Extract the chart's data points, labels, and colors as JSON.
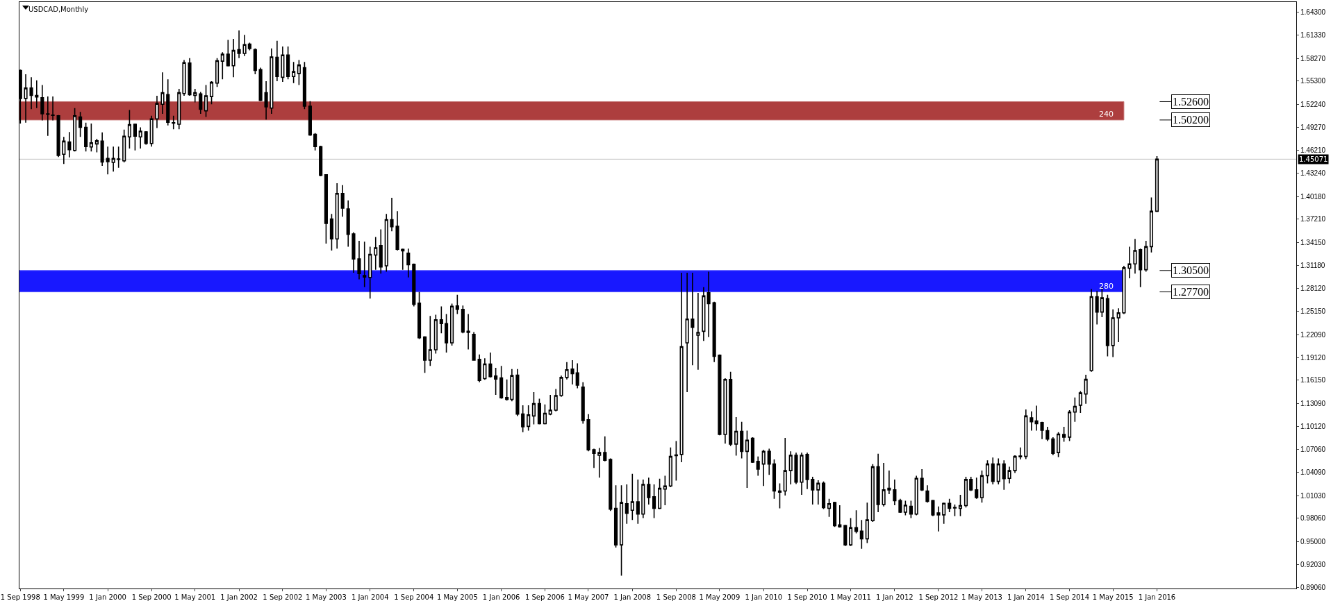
{
  "chart_data": {
    "type": "candlestick",
    "title": "USDCAD,Monthly",
    "x": [
      "1998-09",
      "1998-10",
      "1998-11",
      "1998-12",
      "1999-01",
      "1999-02",
      "1999-03",
      "1999-04",
      "1999-05",
      "1999-06",
      "1999-07",
      "1999-08",
      "1999-09",
      "1999-10",
      "1999-11",
      "1999-12",
      "2000-01",
      "2000-02",
      "2000-03",
      "2000-04",
      "2000-05",
      "2000-06",
      "2000-07",
      "2000-08",
      "2000-09",
      "2000-10",
      "2000-11",
      "2000-12",
      "2001-01",
      "2001-02",
      "2001-03",
      "2001-04",
      "2001-05",
      "2001-06",
      "2001-07",
      "2001-08",
      "2001-09",
      "2001-10",
      "2001-11",
      "2001-12",
      "2002-01",
      "2002-02",
      "2002-03",
      "2002-04",
      "2002-05",
      "2002-06",
      "2002-07",
      "2002-08",
      "2002-09",
      "2002-10",
      "2002-11",
      "2002-12",
      "2003-01",
      "2003-02",
      "2003-03",
      "2003-04",
      "2003-05",
      "2003-06",
      "2003-07",
      "2003-08",
      "2003-09",
      "2003-10",
      "2003-11",
      "2003-12",
      "2004-01",
      "2004-02",
      "2004-03",
      "2004-04",
      "2004-05",
      "2004-06",
      "2004-07",
      "2004-08",
      "2004-09",
      "2004-10",
      "2004-11",
      "2004-12",
      "2005-01",
      "2005-02",
      "2005-03",
      "2005-04",
      "2005-05",
      "2005-06",
      "2005-07",
      "2005-08",
      "2005-09",
      "2005-10",
      "2005-11",
      "2005-12",
      "2006-01",
      "2006-02",
      "2006-03",
      "2006-04",
      "2006-05",
      "2006-06",
      "2006-07",
      "2006-08",
      "2006-09",
      "2006-10",
      "2006-11",
      "2006-12",
      "2007-01",
      "2007-02",
      "2007-03",
      "2007-04",
      "2007-05",
      "2007-06",
      "2007-07",
      "2007-08",
      "2007-09",
      "2007-10",
      "2007-11",
      "2007-12",
      "2008-01",
      "2008-02",
      "2008-03",
      "2008-04",
      "2008-05",
      "2008-06",
      "2008-07",
      "2008-08",
      "2008-09",
      "2008-10",
      "2008-11",
      "2008-12",
      "2009-01",
      "2009-02",
      "2009-03",
      "2009-04",
      "2009-05",
      "2009-06",
      "2009-07",
      "2009-08",
      "2009-09",
      "2009-10",
      "2009-11",
      "2009-12",
      "2010-01",
      "2010-02",
      "2010-03",
      "2010-04",
      "2010-05",
      "2010-06",
      "2010-07",
      "2010-08",
      "2010-09",
      "2010-10",
      "2010-11",
      "2010-12",
      "2011-01",
      "2011-02",
      "2011-03",
      "2011-04",
      "2011-05",
      "2011-06",
      "2011-07",
      "2011-08",
      "2011-09",
      "2011-10",
      "2011-11",
      "2011-12",
      "2012-01",
      "2012-02",
      "2012-03",
      "2012-04",
      "2012-05",
      "2012-06",
      "2012-07",
      "2012-08",
      "2012-09",
      "2012-10",
      "2012-11",
      "2012-12",
      "2013-01",
      "2013-02",
      "2013-03",
      "2013-04",
      "2013-05",
      "2013-06",
      "2013-07",
      "2013-08",
      "2013-09",
      "2013-10",
      "2013-11",
      "2013-12",
      "2014-01",
      "2014-02",
      "2014-03",
      "2014-04",
      "2014-05",
      "2014-06",
      "2014-07",
      "2014-08",
      "2014-09",
      "2014-10",
      "2014-11",
      "2014-12",
      "2015-01",
      "2015-02",
      "2015-03",
      "2015-04",
      "2015-05",
      "2015-06",
      "2015-07",
      "2015-08",
      "2015-09",
      "2015-10",
      "2015-11",
      "2015-12",
      "2016-01"
    ],
    "ohlc": [
      [
        1.5669,
        1.5679,
        1.4974,
        1.5302
      ],
      [
        1.5302,
        1.5619,
        1.4984,
        1.5438
      ],
      [
        1.5438,
        1.5579,
        1.5161,
        1.5342
      ],
      [
        1.5342,
        1.5538,
        1.5176,
        1.5322
      ],
      [
        1.5312,
        1.5478,
        1.5014,
        1.51
      ],
      [
        1.5095,
        1.5327,
        1.4813,
        1.51
      ],
      [
        1.5085,
        1.5327,
        1.5014,
        1.508
      ],
      [
        1.5075,
        1.5085,
        1.4536,
        1.4556
      ],
      [
        1.4571,
        1.4798,
        1.4445,
        1.4743
      ],
      [
        1.4732,
        1.4863,
        1.4531,
        1.4632
      ],
      [
        1.4622,
        1.5176,
        1.4607,
        1.5075
      ],
      [
        1.506,
        1.5125,
        1.4798,
        1.4924
      ],
      [
        1.4924,
        1.4984,
        1.4607,
        1.4672
      ],
      [
        1.4667,
        1.4974,
        1.4607,
        1.4722
      ],
      [
        1.4707,
        1.4773,
        1.4597,
        1.4748
      ],
      [
        1.4743,
        1.4858,
        1.442,
        1.447
      ],
      [
        1.4516,
        1.4672,
        1.4309,
        1.4475
      ],
      [
        1.4465,
        1.4672,
        1.4345,
        1.4516
      ],
      [
        1.4505,
        1.4672,
        1.4395,
        1.451
      ],
      [
        1.4485,
        1.4893,
        1.4465,
        1.4808
      ],
      [
        1.4798,
        1.5151,
        1.4647,
        1.4959
      ],
      [
        1.4964,
        1.4974,
        1.4622,
        1.4808
      ],
      [
        1.4798,
        1.4924,
        1.4647,
        1.4873
      ],
      [
        1.4863,
        1.4873,
        1.4697,
        1.4712
      ],
      [
        1.4712,
        1.5075,
        1.4672,
        1.5035
      ],
      [
        1.5035,
        1.5337,
        1.4914,
        1.5236
      ],
      [
        1.5226,
        1.5644,
        1.51,
        1.5377
      ],
      [
        1.5352,
        1.5553,
        1.4949,
        1.4989
      ],
      [
        1.4984,
        1.5075,
        1.4899,
        1.4979
      ],
      [
        1.4964,
        1.5428,
        1.4899,
        1.5377
      ],
      [
        1.5367,
        1.5805,
        1.5337,
        1.577
      ],
      [
        1.5765,
        1.583,
        1.5337,
        1.5352
      ],
      [
        1.5342,
        1.5428,
        1.5251,
        1.5377
      ],
      [
        1.5362,
        1.5387,
        1.51,
        1.5161
      ],
      [
        1.514,
        1.5478,
        1.506,
        1.5337
      ],
      [
        1.5327,
        1.5528,
        1.5226,
        1.5513
      ],
      [
        1.5503,
        1.583,
        1.5453,
        1.5795
      ],
      [
        1.579,
        1.5906,
        1.5553,
        1.5881
      ],
      [
        1.5881,
        1.6067,
        1.572,
        1.573
      ],
      [
        1.573,
        1.6082,
        1.5579,
        1.5931
      ],
      [
        1.5941,
        1.6193,
        1.583,
        1.5891
      ],
      [
        1.5891,
        1.6133,
        1.5856,
        1.6007
      ],
      [
        1.6012,
        1.6032,
        1.5931,
        1.5956
      ],
      [
        1.5941,
        1.5956,
        1.5619,
        1.5669
      ],
      [
        1.5679,
        1.5705,
        1.5266,
        1.5276
      ],
      [
        1.5377,
        1.5528,
        1.5025,
        1.5191
      ],
      [
        1.5176,
        1.5956,
        1.51,
        1.5846
      ],
      [
        1.5841,
        1.6057,
        1.5528,
        1.5589
      ],
      [
        1.5579,
        1.5981,
        1.5518,
        1.5871
      ],
      [
        1.5871,
        1.5981,
        1.5553,
        1.5589
      ],
      [
        1.5589,
        1.578,
        1.5503,
        1.5654
      ],
      [
        1.5629,
        1.5805,
        1.5478,
        1.574
      ],
      [
        1.5705,
        1.578,
        1.5161,
        1.5201
      ],
      [
        1.5201,
        1.5266,
        1.4813,
        1.4823
      ],
      [
        1.4833,
        1.4848,
        1.4622,
        1.4672
      ],
      [
        1.4672,
        1.4682,
        1.4284,
        1.4294
      ],
      [
        1.4304,
        1.4309,
        1.3403,
        1.3665
      ],
      [
        1.3725,
        1.3791,
        1.3312,
        1.3463
      ],
      [
        1.3463,
        1.4193,
        1.3337,
        1.4058
      ],
      [
        1.4058,
        1.4168,
        1.3755,
        1.3866
      ],
      [
        1.3856,
        1.3967,
        1.3362,
        1.3524
      ],
      [
        1.3529,
        1.3549,
        1.302,
        1.3201
      ],
      [
        1.3201,
        1.3438,
        1.2934,
        1.301
      ],
      [
        1.2985,
        1.3428,
        1.2833,
        1.2965
      ],
      [
        1.296,
        1.3362,
        1.2682,
        1.3262
      ],
      [
        1.3252,
        1.3488,
        1.306,
        1.3347
      ],
      [
        1.3377,
        1.3589,
        1.301,
        1.3095
      ],
      [
        1.3111,
        1.3791,
        1.3035,
        1.3715
      ],
      [
        1.3715,
        1.4002,
        1.3564,
        1.3624
      ],
      [
        1.3629,
        1.3826,
        1.3312,
        1.3327
      ],
      [
        1.3327,
        1.3337,
        1.306,
        1.3307
      ],
      [
        1.3277,
        1.3337,
        1.2959,
        1.3126
      ],
      [
        1.3131,
        1.3141,
        1.2581,
        1.2607
      ],
      [
        1.2622,
        1.2768,
        1.2154,
        1.2169
      ],
      [
        1.2179,
        1.2189,
        1.171,
        1.1877
      ],
      [
        1.1877,
        1.2456,
        1.1801,
        1.2013
      ],
      [
        1.2013,
        1.2471,
        1.1962,
        1.2405
      ],
      [
        1.2405,
        1.2581,
        1.2229,
        1.2355
      ],
      [
        1.2355,
        1.2481,
        1.1977,
        1.2103
      ],
      [
        1.2103,
        1.2617,
        1.2068,
        1.2582
      ],
      [
        1.2587,
        1.2733,
        1.2481,
        1.2541
      ],
      [
        1.2541,
        1.2592,
        1.2229,
        1.2244
      ],
      [
        1.2254,
        1.2481,
        1.2018,
        1.2239
      ],
      [
        1.2214,
        1.2244,
        1.1877,
        1.1877
      ],
      [
        1.1887,
        1.1952,
        1.1589,
        1.161
      ],
      [
        1.1635,
        1.1902,
        1.162,
        1.1826
      ],
      [
        1.1826,
        1.1977,
        1.165,
        1.166
      ],
      [
        1.167,
        1.1776,
        1.1423,
        1.163
      ],
      [
        1.1645,
        1.1801,
        1.1373,
        1.1383
      ],
      [
        1.1388,
        1.1625,
        1.1348,
        1.1363
      ],
      [
        1.1363,
        1.1761,
        1.1338,
        1.1675
      ],
      [
        1.168,
        1.1761,
        1.1146,
        1.1171
      ],
      [
        1.1171,
        1.1287,
        1.0935,
        1.1005
      ],
      [
        1.101,
        1.1287,
        1.0955,
        1.1161
      ],
      [
        1.1146,
        1.1458,
        1.1035,
        1.1307
      ],
      [
        1.1307,
        1.1373,
        1.1035,
        1.1045
      ],
      [
        1.1045,
        1.1297,
        1.1035,
        1.1181
      ],
      [
        1.1171,
        1.1423,
        1.1156,
        1.1222
      ],
      [
        1.1222,
        1.1499,
        1.1206,
        1.1413
      ],
      [
        1.1413,
        1.1675,
        1.1398,
        1.165
      ],
      [
        1.165,
        1.1851,
        1.1625,
        1.1751
      ],
      [
        1.1761,
        1.1876,
        1.1559,
        1.17
      ],
      [
        1.171,
        1.1836,
        1.1509,
        1.1549
      ],
      [
        1.1524,
        1.1589,
        1.1045,
        1.1086
      ],
      [
        1.1096,
        1.1171,
        1.0683,
        1.0703
      ],
      [
        1.0703,
        1.0718,
        1.0466,
        1.0657
      ],
      [
        1.0632,
        1.0728,
        1.034,
        1.0667
      ],
      [
        1.0667,
        1.0879,
        1.0552,
        1.0567
      ],
      [
        1.0577,
        1.0592,
        0.9902,
        0.9927
      ],
      [
        0.9937,
        1.024,
        0.9423,
        0.9459
      ],
      [
        0.9459,
        1.024,
        0.9056,
        1.0013
      ],
      [
        0.9998,
        1.025,
        0.9736,
        0.9872
      ],
      [
        0.9912,
        1.039,
        0.9786,
        1.0023
      ],
      [
        1.0023,
        1.0315,
        0.9736,
        0.9862
      ],
      [
        0.9862,
        1.0315,
        0.9811,
        1.025
      ],
      [
        1.025,
        1.034,
        0.9987,
        1.0078
      ],
      [
        1.0088,
        1.025,
        0.9811,
        0.9937
      ],
      [
        0.9937,
        1.0325,
        0.9927,
        1.0199
      ],
      [
        1.0189,
        1.0365,
        0.9978,
        1.023
      ],
      [
        1.023,
        1.0733,
        1.0214,
        1.0617
      ],
      [
        1.0637,
        1.0819,
        1.03,
        1.0627
      ],
      [
        1.0642,
        1.302,
        1.0542,
        1.2053
      ],
      [
        1.2103,
        1.302,
        1.1458,
        1.2415
      ],
      [
        1.2415,
        1.302,
        1.1811,
        1.2305
      ],
      [
        1.2204,
        1.2758,
        1.1751,
        1.2239
      ],
      [
        1.2254,
        1.2833,
        1.2128,
        1.2718
      ],
      [
        1.2758,
        1.3035,
        1.2179,
        1.2617
      ],
      [
        1.2627,
        1.2642,
        1.1851,
        1.1927
      ],
      [
        1.1942,
        1.1952,
        1.0894,
        1.0904
      ],
      [
        1.0904,
        1.164,
        1.0784,
        1.1624
      ],
      [
        1.1624,
        1.1725,
        1.0753,
        1.0778
      ],
      [
        1.0778,
        1.1131,
        1.0627,
        1.0945
      ],
      [
        1.0945,
        1.1071,
        1.0592,
        1.0683
      ],
      [
        1.0683,
        1.0955,
        1.0204,
        1.0829
      ],
      [
        1.0854,
        1.0869,
        1.0532,
        1.0542
      ],
      [
        1.0552,
        1.0617,
        1.0365,
        1.0451
      ],
      [
        1.0517,
        1.0703,
        1.023,
        1.0683
      ],
      [
        1.0683,
        1.0718,
        1.0375,
        1.0517
      ],
      [
        1.0517,
        1.0577,
        1.0063,
        1.0164
      ],
      [
        1.0164,
        1.0265,
        0.9937,
        1.0149
      ],
      [
        1.0164,
        1.0859,
        1.0104,
        1.0431
      ],
      [
        1.0431,
        1.0683,
        1.025,
        1.0632
      ],
      [
        1.0632,
        1.0667,
        1.0255,
        1.028
      ],
      [
        1.028,
        1.0667,
        1.0114,
        1.0632
      ],
      [
        1.0642,
        1.0667,
        1.0189,
        1.0315
      ],
      [
        1.0315,
        1.035,
        0.9988,
        1.0179
      ],
      [
        1.0179,
        1.0305,
        0.9988,
        1.0265
      ],
      [
        1.0265,
        1.029,
        0.9927,
        0.9947
      ],
      [
        0.9937,
        1.0063,
        0.9826,
        0.9998
      ],
      [
        1.0013,
        1.0023,
        0.9695,
        0.9711
      ],
      [
        0.9721,
        0.9978,
        0.9685,
        0.9695
      ],
      [
        0.9711,
        0.9721,
        0.9444,
        0.9459
      ],
      [
        0.9459,
        0.9811,
        0.9444,
        0.9685
      ],
      [
        0.9685,
        0.9912,
        0.961,
        0.9635
      ],
      [
        0.964,
        0.9786,
        0.9408,
        0.9539
      ],
      [
        0.9539,
        1.0013,
        0.9484,
        0.9786
      ],
      [
        0.9776,
        1.0517,
        0.9761,
        1.0481
      ],
      [
        1.0481,
        1.0652,
        0.9887,
        0.9988
      ],
      [
        0.9988,
        1.0532,
        0.9963,
        1.0179
      ],
      [
        1.0179,
        1.0431,
        1.0123,
        1.0199
      ],
      [
        1.0179,
        1.0315,
        0.9978,
        1.0038
      ],
      [
        1.0038,
        1.0063,
        0.9877,
        0.9887
      ],
      [
        0.9887,
        1.0038,
        0.9847,
        0.9978
      ],
      [
        0.9963,
        1.0038,
        0.9811,
        0.9862
      ],
      [
        0.9862,
        1.0365,
        0.9847,
        1.033
      ],
      [
        1.033,
        1.0451,
        1.0164,
        1.0179
      ],
      [
        1.0164,
        1.024,
        1.0013,
        1.0028
      ],
      [
        1.0038,
        1.0048,
        0.9836,
        0.9852
      ],
      [
        0.9877,
        0.9963,
        0.9635,
        0.9852
      ],
      [
        0.9852,
        1.0013,
        0.9736,
        1.0003
      ],
      [
        1.0003,
        1.0063,
        0.9887,
        0.9937
      ],
      [
        0.9942,
        0.9988,
        0.9836,
        0.9947
      ],
      [
        0.9937,
        1.0114,
        0.9836,
        0.9973
      ],
      [
        0.9973,
        1.035,
        0.9948,
        1.0315
      ],
      [
        1.0315,
        1.035,
        1.0164,
        1.0179
      ],
      [
        1.0179,
        1.034,
        1.0063,
        1.0078
      ],
      [
        1.0078,
        1.0431,
        1.0013,
        1.0365
      ],
      [
        1.0365,
        1.0567,
        1.0265,
        1.0517
      ],
      [
        1.0517,
        1.0602,
        1.025,
        1.029
      ],
      [
        1.029,
        1.0592,
        1.025,
        1.0517
      ],
      [
        1.0517,
        1.0567,
        1.0179,
        1.0325
      ],
      [
        1.033,
        1.0481,
        1.0265,
        1.0431
      ],
      [
        1.0431,
        1.0632,
        1.0401,
        1.0617
      ],
      [
        1.0612,
        1.0733,
        1.0577,
        1.0622
      ],
      [
        1.0617,
        1.1232,
        1.0582,
        1.1146
      ],
      [
        1.1121,
        1.1207,
        1.0955,
        1.1071
      ],
      [
        1.1081,
        1.1282,
        1.0955,
        1.1045
      ],
      [
        1.106,
        1.1071,
        1.0844,
        1.096
      ],
      [
        1.0955,
        1.1005,
        1.0819,
        1.0844
      ],
      [
        1.0844,
        1.0869,
        1.0632,
        1.0657
      ],
      [
        1.0667,
        1.0934,
        1.0607,
        1.0909
      ],
      [
        1.0904,
        1.1005,
        1.0809,
        1.0869
      ],
      [
        1.0869,
        1.1222,
        1.0819,
        1.1197
      ],
      [
        1.1197,
        1.1388,
        1.1071,
        1.1272
      ],
      [
        1.1287,
        1.1473,
        1.1186,
        1.1448
      ],
      [
        1.1433,
        1.1685,
        1.1307,
        1.1625
      ],
      [
        1.174,
        1.2808,
        1.1725,
        1.2708
      ],
      [
        1.2708,
        1.2783,
        1.2345,
        1.2506
      ],
      [
        1.2506,
        1.2833,
        1.244,
        1.2693
      ],
      [
        1.2682,
        1.2733,
        1.1927,
        1.2068
      ],
      [
        1.2068,
        1.2541,
        1.1917,
        1.243
      ],
      [
        1.243,
        1.2556,
        1.2113,
        1.2496
      ],
      [
        1.2496,
        1.3111,
        1.2481,
        1.3085
      ],
      [
        1.308,
        1.3362,
        1.2949,
        1.3136
      ],
      [
        1.3136,
        1.3463,
        1.301,
        1.3312
      ],
      [
        1.3322,
        1.3337,
        1.2833,
        1.306
      ],
      [
        1.306,
        1.3438,
        1.3035,
        1.3362
      ],
      [
        1.3362,
        1.4007,
        1.3287,
        1.3826
      ],
      [
        1.3826,
        1.4546,
        1.3816,
        1.45071
      ]
    ],
    "xlim": [
      "1998-08-27",
      "2018-02-15"
    ],
    "xticks": [
      {
        "value": "1998-09",
        "label": "1 Sep 1998"
      },
      {
        "value": "1999-05",
        "label": "1 May 1999"
      },
      {
        "value": "2000-01",
        "label": "1 Jan 2000"
      },
      {
        "value": "2000-09",
        "label": "1 Sep 2000"
      },
      {
        "value": "2001-05",
        "label": "1 May 2001"
      },
      {
        "value": "2002-01",
        "label": "1 Jan 2002"
      },
      {
        "value": "2002-09",
        "label": "1 Sep 2002"
      },
      {
        "value": "2003-05",
        "label": "1 May 2003"
      },
      {
        "value": "2004-01",
        "label": "1 Jan 2004"
      },
      {
        "value": "2004-09",
        "label": "1 Sep 2004"
      },
      {
        "value": "2005-05",
        "label": "1 May 2005"
      },
      {
        "value": "2006-01",
        "label": "1 Jan 2006"
      },
      {
        "value": "2006-09",
        "label": "1 Sep 2006"
      },
      {
        "value": "2007-05",
        "label": "1 May 2007"
      },
      {
        "value": "2008-01",
        "label": "1 Jan 2008"
      },
      {
        "value": "2008-09",
        "label": "1 Sep 2008"
      },
      {
        "value": "2009-05",
        "label": "1 May 2009"
      },
      {
        "value": "2010-01",
        "label": "1 Jan 2010"
      },
      {
        "value": "2010-09",
        "label": "1 Sep 2010"
      },
      {
        "value": "2011-05",
        "label": "1 May 2011"
      },
      {
        "value": "2012-01",
        "label": "1 Jan 2012"
      },
      {
        "value": "2012-09",
        "label": "1 Sep 2012"
      },
      {
        "value": "2013-05",
        "label": "1 May 2013"
      },
      {
        "value": "2014-01",
        "label": "1 Jan 2014"
      },
      {
        "value": "2014-09",
        "label": "1 Sep 2014"
      },
      {
        "value": "2015-05",
        "label": "1 May 2015"
      },
      {
        "value": "2016-01",
        "label": "1 Jan 2016"
      }
    ],
    "ylim": [
      0.8888,
      1.6563
    ],
    "yticks": [
      {
        "value": 1.643,
        "label": "1.64300"
      },
      {
        "value": 1.6133,
        "label": "1.61330"
      },
      {
        "value": 1.5827,
        "label": "1.58270"
      },
      {
        "value": 1.553,
        "label": "1.55300"
      },
      {
        "value": 1.5224,
        "label": "1.52240"
      },
      {
        "value": 1.4927,
        "label": "1.49270"
      },
      {
        "value": 1.4621,
        "label": "1.46210"
      },
      {
        "value": 1.4324,
        "label": "1.43240"
      },
      {
        "value": 1.4018,
        "label": "1.40180"
      },
      {
        "value": 1.3721,
        "label": "1.37210"
      },
      {
        "value": 1.3415,
        "label": "1.34150"
      },
      {
        "value": 1.3118,
        "label": "1.31180"
      },
      {
        "value": 1.2812,
        "label": "1.28120"
      },
      {
        "value": 1.2515,
        "label": "1.25150"
      },
      {
        "value": 1.2209,
        "label": "1.22090"
      },
      {
        "value": 1.1912,
        "label": "1.19120"
      },
      {
        "value": 1.1615,
        "label": "1.16150"
      },
      {
        "value": 1.1309,
        "label": "1.13090"
      },
      {
        "value": 1.1012,
        "label": "1.10120"
      },
      {
        "value": 1.0706,
        "label": "1.07060"
      },
      {
        "value": 1.0409,
        "label": "1.04090"
      },
      {
        "value": 1.0103,
        "label": "1.01030"
      },
      {
        "value": 0.9806,
        "label": "0.98060"
      },
      {
        "value": 0.95,
        "label": "0.95000"
      },
      {
        "value": 0.9203,
        "label": "0.92030"
      },
      {
        "value": 0.8906,
        "label": "0.89060"
      }
    ],
    "bands": [
      {
        "axis": "y",
        "from": 1.502,
        "to": 1.526,
        "label": "240",
        "color": "#a52a2a"
      },
      {
        "axis": "y",
        "from": 1.277,
        "to": 1.305,
        "label": "280",
        "color": "#0000ff"
      }
    ],
    "ref_lines": [
      {
        "axis": "y",
        "value": 1.45071,
        "label": "1.45071",
        "color": "#c0c0c0"
      }
    ],
    "annotations": [
      "1.52600",
      "1.50200",
      "1.30500",
      "1.27700"
    ],
    "grid": false
  }
}
